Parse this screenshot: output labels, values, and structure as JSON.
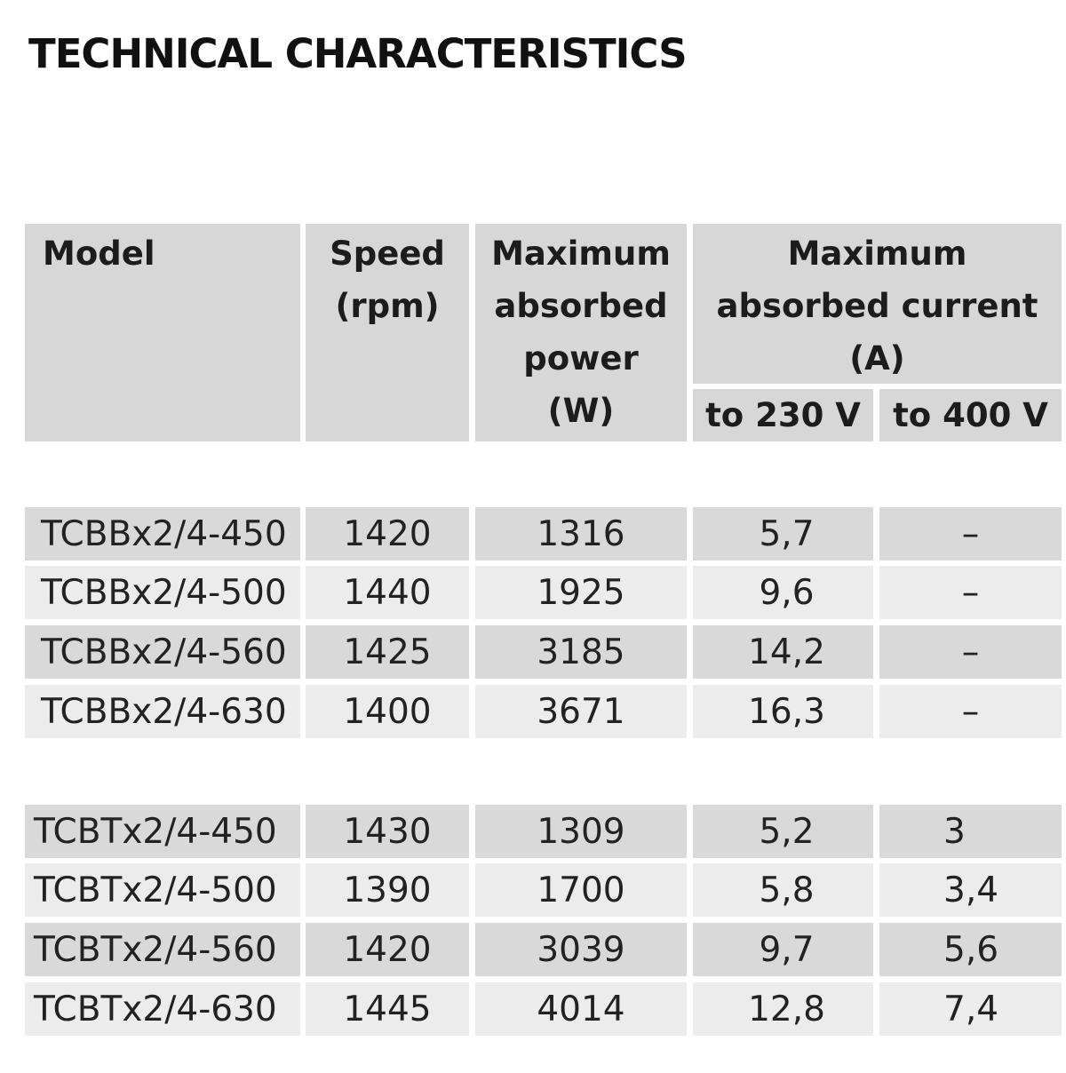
{
  "title": "TECHNICAL CHARACTERISTICS",
  "table": {
    "headers": {
      "model": "Model",
      "speed": [
        "Speed",
        "(rpm)"
      ],
      "power": [
        "Maximum",
        "absorbed",
        "power",
        "(W)"
      ],
      "current": [
        "Maximum",
        "absorbed current",
        "(A)"
      ],
      "to230": "to 230 V",
      "to400": "to 400 V"
    },
    "group1": [
      [
        "TCBBx2/4-450",
        "1420",
        "1316",
        "5,7",
        "–"
      ],
      [
        "TCBBx2/4-500",
        "1440",
        "1925",
        "9,6",
        "–"
      ],
      [
        "TCBBx2/4-560",
        "1425",
        "3185",
        "14,2",
        "–"
      ],
      [
        "TCBBx2/4-630",
        "1400",
        "3671",
        "16,3",
        "–"
      ]
    ],
    "group2": [
      [
        "TCBTx2/4-450",
        "1430",
        "1309",
        "5,2",
        "3"
      ],
      [
        "TCBTx2/4-500",
        "1390",
        "1700",
        "5,8",
        "3,4"
      ],
      [
        "TCBTx2/4-560",
        "1420",
        "3039",
        "9,7",
        "5,6"
      ],
      [
        "TCBTx2/4-630",
        "1445",
        "4014",
        "12,8",
        "7,4"
      ]
    ]
  }
}
